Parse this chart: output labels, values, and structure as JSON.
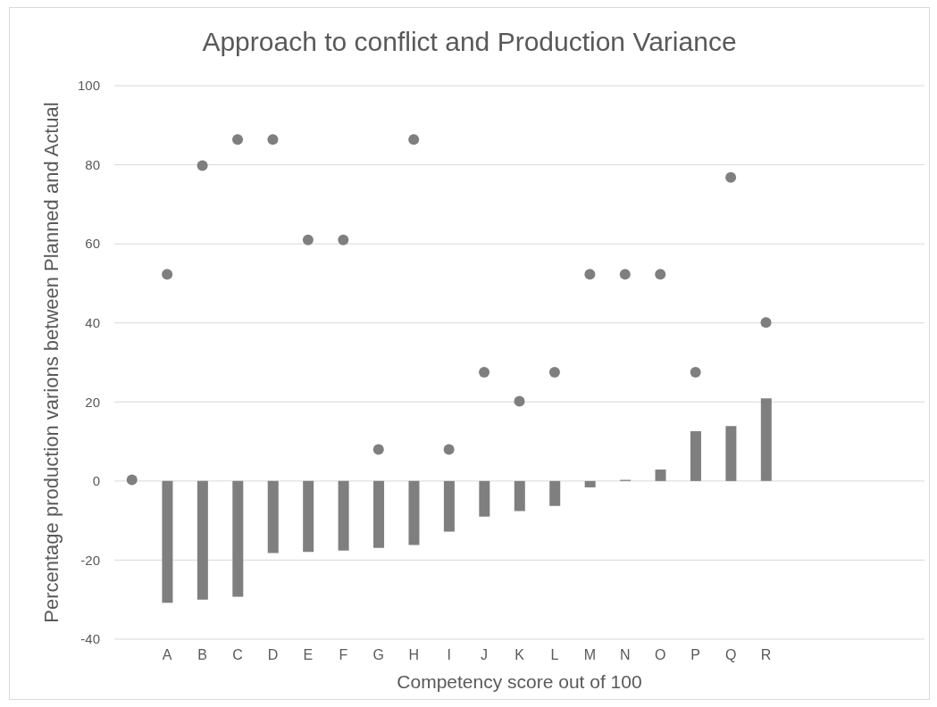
{
  "chart_data": {
    "type": "bar",
    "title": "Approach to conflict and Production Variance",
    "xlabel": "Competency score out of 100",
    "ylabel": "Percentage production varions between Planned and Actual",
    "categories": [
      null,
      "A",
      "B",
      "C",
      "D",
      "E",
      "F",
      "G",
      "H",
      "I",
      "J",
      "K",
      "L",
      "M",
      "N",
      "O",
      "P",
      "Q",
      "R",
      null,
      null,
      null,
      null
    ],
    "series": [
      {
        "color": "#7f7f7f",
        "values": [
          null,
          -30.8,
          -30,
          -29.3,
          -18.2,
          -17.9,
          -17.6,
          -16.9,
          -16.2,
          -12.8,
          -9,
          -7.6,
          -6.3,
          -1.6,
          0.3,
          2.9,
          12.6,
          13.9,
          20.9,
          null,
          null,
          null,
          null
        ]
      },
      {
        "type": "scatter",
        "color": "#7f7f7f",
        "values": [
          0.3,
          52.3,
          79.8,
          86.4,
          86.4,
          61,
          61,
          8,
          86.4,
          8,
          27.5,
          20.2,
          27.5,
          52.3,
          52.3,
          52.3,
          27.5,
          76.8,
          40.1,
          null,
          null,
          null,
          null
        ]
      }
    ],
    "ylim": [
      -40,
      100
    ],
    "yticks": [
      -40,
      -20,
      0,
      20,
      40,
      60,
      80,
      100
    ],
    "grid": "y",
    "marker": "circle"
  }
}
